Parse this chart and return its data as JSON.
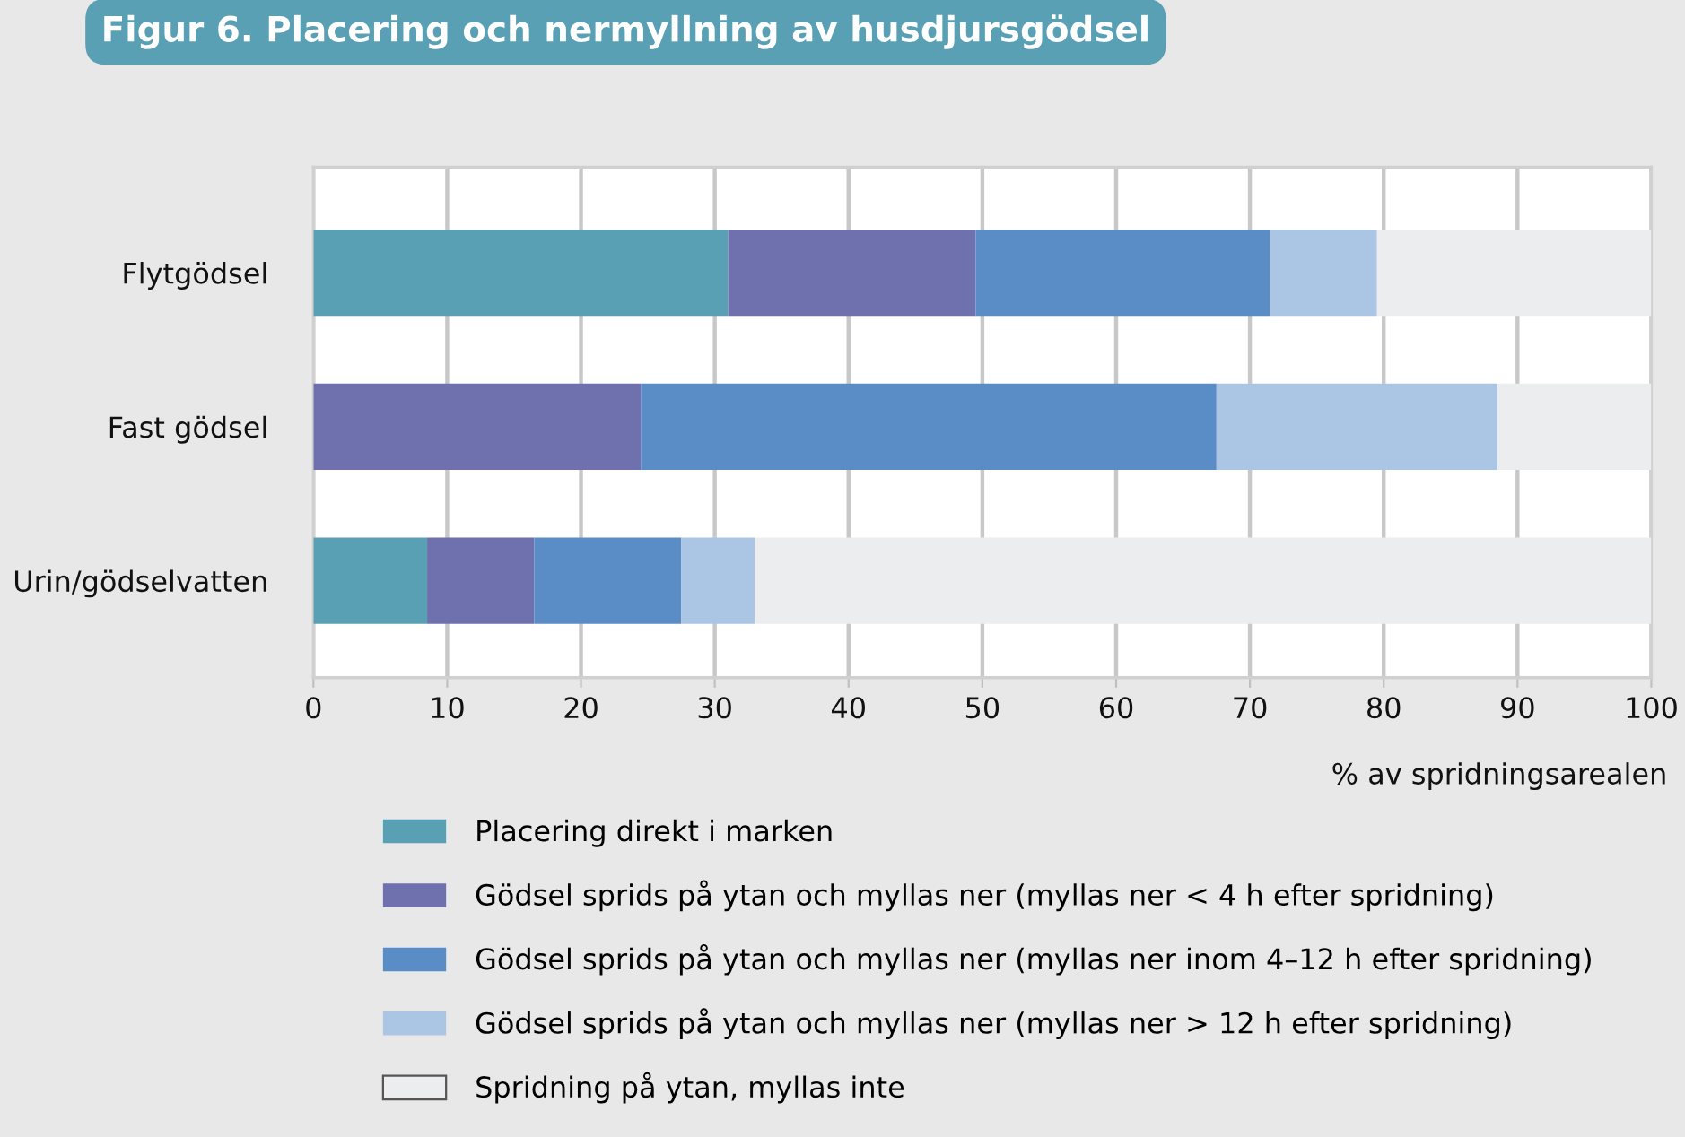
{
  "chart_data": {
    "type": "bar",
    "orientation": "horizontal",
    "stacked": true,
    "title": "Figur 6. Placering och nermyllning av husdjursgödsel",
    "xlabel": "% av spridningsarealen",
    "categories": [
      "Flytgödsel",
      "Fast gödsel",
      "Urin/gödselvatten"
    ],
    "series": [
      {
        "name": "Placering direkt i marken",
        "color": "#5aa0b4",
        "values": [
          31,
          0,
          8.5
        ]
      },
      {
        "name": "Gödsel sprids på ytan och myllas ner (myllas ner < 4 h efter spridning)",
        "color": "#6f70ae",
        "values": [
          18.5,
          24.5,
          8
        ]
      },
      {
        "name": "Gödsel sprids på ytan och myllas ner (myllas ner inom 4–12 h efter spridning)",
        "color": "#5a8cc6",
        "values": [
          22,
          43,
          11
        ]
      },
      {
        "name": "Gödsel sprids på ytan och myllas ner (myllas ner > 12 h efter spridning)",
        "color": "#abc5e4",
        "values": [
          8,
          21,
          5.5
        ]
      },
      {
        "name": "Spridning på ytan, myllas inte",
        "color": "#ecedee",
        "values": [
          20.5,
          11.5,
          67
        ]
      }
    ],
    "xlim": [
      0,
      100
    ],
    "xticks": [
      0,
      10,
      20,
      30,
      40,
      50,
      60,
      70,
      80,
      90,
      100
    ],
    "grid": "x",
    "legend": "bottom"
  }
}
